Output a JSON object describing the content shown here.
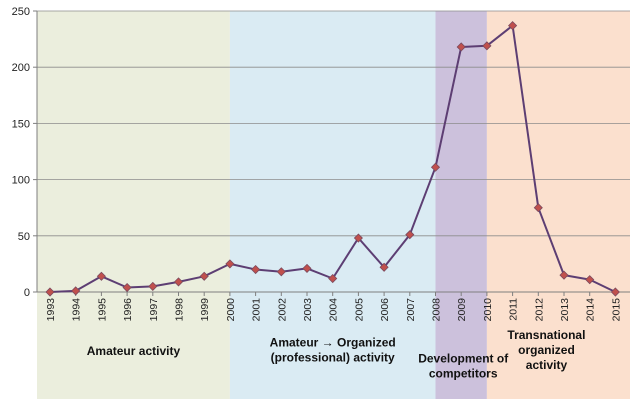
{
  "chart_data": {
    "type": "line",
    "x": [
      "1993",
      "1994",
      "1995",
      "1996",
      "1997",
      "1998",
      "1999",
      "2000",
      "2001",
      "2002",
      "2003",
      "2004",
      "2005",
      "2006",
      "2007",
      "2008",
      "2009",
      "2010",
      "2011",
      "2012",
      "2013",
      "2014",
      "2015"
    ],
    "series": [
      {
        "values": [
          0,
          1,
          14,
          4,
          5,
          9,
          14,
          25,
          20,
          18,
          21,
          12,
          48,
          22,
          51,
          111,
          218,
          219,
          237,
          75,
          15,
          11,
          0
        ]
      }
    ],
    "yticks": [
      "0",
      "50",
      "100",
      "150",
      "200",
      "250"
    ],
    "ylim": [
      0,
      250
    ],
    "grid": "horizontal",
    "title": "",
    "xlabel": "",
    "ylabel": "",
    "phases": [
      {
        "label_lines": [
          "Amateur activity"
        ],
        "start": "1993",
        "end": "2000",
        "color": "#ebeedd"
      },
      {
        "label_lines": [
          "Amateur → Organized",
          "(professional) activity"
        ],
        "start": "2000",
        "end": "2008",
        "color": "#daebf3"
      },
      {
        "label_lines": [
          "Development of",
          "competitors"
        ],
        "start": "2008",
        "end": "2010",
        "color": "#ccc1dc"
      },
      {
        "label_lines": [
          "Transnational",
          "organized",
          "activity"
        ],
        "start": "2010",
        "end": "2015",
        "color": "#fbe0ce"
      }
    ],
    "line_color": "#5d3e73",
    "marker_color": "#c0504d"
  }
}
